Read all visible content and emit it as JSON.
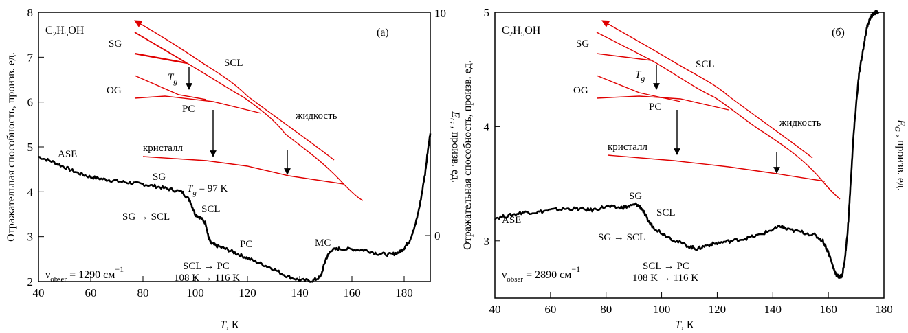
{
  "chart_data": [
    {
      "id": "a",
      "type": "line",
      "panel_label": "(a)",
      "compound": "C2H5OH",
      "compound_parts": [
        "C",
        "2",
        "H",
        "5",
        "OH"
      ],
      "xlabel": "T, K",
      "xlabel_parts": [
        "T",
        ", К"
      ],
      "ylabel": "Отражательная способность, произв. ед.",
      "y2label": "E_G , произв. ед.",
      "y2label_parts": [
        "E",
        "G",
        " , произв. ед."
      ],
      "xlim": [
        40,
        190
      ],
      "ylim": [
        2,
        8
      ],
      "xticks": [
        40,
        60,
        80,
        100,
        120,
        140,
        160,
        180
      ],
      "yticks": [
        2,
        3,
        4,
        5,
        6,
        7,
        8
      ],
      "y2ticks_labels": [
        "10",
        "0"
      ],
      "nu": {
        "symbol": "ν",
        "sub": "obser",
        "text": " = 1290 см",
        "sup": "−1"
      },
      "labels": {
        "ASE": "ASE",
        "SG": "SG",
        "SCL": "SCL",
        "PC": "PC",
        "MC": "MC",
        "SG_SCL": "SG → SCL",
        "SCL_PC_1": "SCL → PC",
        "SCL_PC_2": "108 K → 116 K",
        "tg_T": "T",
        "tg_g": "g",
        "tg_val": " = 97 K"
      },
      "reflectivity": {
        "x": [
          40,
          45,
          50,
          55,
          60,
          65,
          70,
          75,
          80,
          85,
          90,
          95,
          98,
          100,
          102,
          104,
          105,
          106,
          108,
          112,
          116,
          120,
          125,
          130,
          135,
          140,
          145,
          148,
          150,
          152,
          155,
          160,
          165,
          170,
          175,
          178,
          180,
          182,
          184,
          186,
          188,
          189,
          190
        ],
        "y": [
          4.78,
          4.68,
          4.55,
          4.42,
          4.33,
          4.28,
          4.24,
          4.2,
          4.17,
          4.12,
          4.06,
          4.0,
          3.8,
          3.5,
          3.42,
          3.3,
          3.0,
          2.85,
          2.8,
          2.72,
          2.62,
          2.52,
          2.4,
          2.28,
          2.12,
          2.03,
          2.02,
          2.1,
          2.5,
          2.7,
          2.73,
          2.72,
          2.7,
          2.62,
          2.6,
          2.65,
          2.75,
          2.9,
          3.2,
          3.7,
          4.4,
          4.9,
          5.3
        ]
      },
      "inset": {
        "liquid_label": "жидкость",
        "crystal_label": "кристалл",
        "Tg_T": "T",
        "Tg_g": "g",
        "SG": "SG",
        "OG": "OG",
        "SCL": "SCL",
        "PC": "PC"
      }
    },
    {
      "id": "b",
      "type": "line",
      "panel_label": "(б)",
      "compound": "C2H5OH",
      "compound_parts": [
        "C",
        "2",
        "H",
        "5",
        "OH"
      ],
      "xlabel": "T, K",
      "xlabel_parts": [
        "T",
        ", К"
      ],
      "ylabel": "Отражательная способность, произв. ед.",
      "y2label": "E_G , произв. ед.",
      "y2label_parts": [
        "E",
        "G",
        " , произв. ед."
      ],
      "xlim": [
        40,
        180
      ],
      "ylim": [
        2.5,
        5
      ],
      "xticks": [
        40,
        60,
        80,
        100,
        120,
        140,
        160,
        180
      ],
      "yticks": [
        3,
        4,
        5
      ],
      "nu": {
        "symbol": "ν",
        "sub": "obser",
        "text": " = 2890 см",
        "sup": "−1"
      },
      "labels": {
        "ASE": "ASE",
        "SG": "SG",
        "SCL": "SCL",
        "SG_SCL": "SG → SCL",
        "SCL_PC_1": "SCL → PC",
        "SCL_PC_2": "108 K → 116 K"
      },
      "reflectivity": {
        "x": [
          40,
          45,
          50,
          55,
          60,
          65,
          70,
          75,
          80,
          85,
          88,
          91,
          93,
          95,
          97,
          100,
          105,
          110,
          113,
          116,
          120,
          125,
          130,
          135,
          140,
          143,
          145,
          150,
          155,
          158,
          160,
          162,
          163,
          164,
          165,
          166,
          167,
          168,
          169,
          170,
          171,
          172,
          173,
          174,
          175,
          176,
          177,
          178
        ],
        "y": [
          3.2,
          3.22,
          3.25,
          3.25,
          3.27,
          3.28,
          3.28,
          3.27,
          3.3,
          3.29,
          3.3,
          3.32,
          3.28,
          3.18,
          3.12,
          3.07,
          3.0,
          2.95,
          2.93,
          2.96,
          2.98,
          3.0,
          3.02,
          3.05,
          3.1,
          3.13,
          3.1,
          3.08,
          3.05,
          3.0,
          2.9,
          2.75,
          2.7,
          2.68,
          2.7,
          2.85,
          3.1,
          3.5,
          3.9,
          4.2,
          4.45,
          4.6,
          4.75,
          4.88,
          4.95,
          4.98,
          5.0,
          5.0
        ]
      },
      "inset": {
        "liquid_label": "жидкость",
        "crystal_label": "кристалл",
        "Tg_T": "T",
        "Tg_g": "g",
        "SG": "SG",
        "OG": "OG",
        "SCL": "SCL",
        "PC": "PC"
      }
    }
  ]
}
